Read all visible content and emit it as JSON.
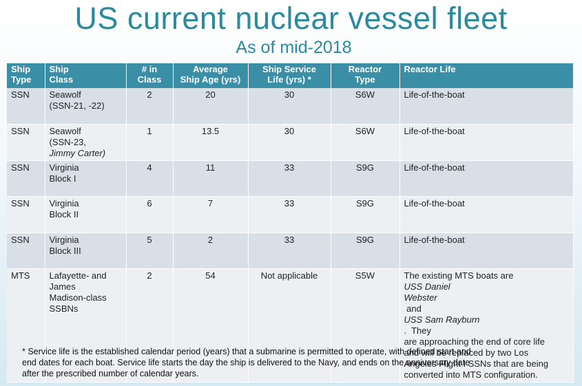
{
  "title": "US current nuclear vessel fleet",
  "subtitle": "As of mid-2018",
  "headers": {
    "type": [
      "Ship",
      "Type"
    ],
    "class": [
      "Ship",
      "Class"
    ],
    "num": [
      "# in",
      "Class"
    ],
    "age": [
      "Average",
      "Ship Age (yrs)"
    ],
    "life": [
      "Ship Service",
      "Life (yrs) *"
    ],
    "reactor": [
      "Reactor",
      "Type"
    ],
    "reactor_life": "Reactor Life"
  },
  "rows": [
    {
      "type": "SSN",
      "class": [
        "Seawolf",
        "(SSN-21, -22)"
      ],
      "num": "2",
      "age": "20",
      "life": "30",
      "reactor": "S6W",
      "reactor_life": "Life-of-the-boat"
    },
    {
      "type": "SSN",
      "class": [
        "Seawolf",
        "(SSN-23,",
        "Jimmy Carter)"
      ],
      "num": "1",
      "age": "13.5",
      "life": "30",
      "reactor": "S6W",
      "reactor_life": "Life-of-the-boat"
    },
    {
      "type": "SSN",
      "class": [
        "Virginia",
        "Block I"
      ],
      "num": "4",
      "age": "11",
      "life": "33",
      "reactor": "S9G",
      "reactor_life": "Life-of-the-boat"
    },
    {
      "type": "SSN",
      "class": [
        "Virginia",
        "Block II"
      ],
      "num": "6",
      "age": "7",
      "life": "33",
      "reactor": "S9G",
      "reactor_life": "Life-of-the-boat"
    },
    {
      "type": "SSN",
      "class": [
        "Virginia",
        "Block III"
      ],
      "num": "5",
      "age": "2",
      "life": "33",
      "reactor": "S9G",
      "reactor_life": "Life-of-the-boat"
    },
    {
      "type": "MTS",
      "class": [
        "Lafayette- and",
        "James",
        "Madison-class",
        "SSBNs"
      ],
      "num": "2",
      "age": "54",
      "life": "Not applicable",
      "reactor": "S5W",
      "reactor_life": [
        "The existing MTS boats are ",
        "USS Daniel",
        "Webster",
        " and ",
        "USS Sam Rayburn",
        ".  They",
        "are approaching the end of core life",
        "and will be replaced by two Los",
        "Angeles Flight I SSNs that are being",
        "converted into MTS configuration."
      ]
    }
  ],
  "footnote": [
    "* Service life is the established calendar period (years) that a submarine is permitted to operate, with defined start and",
    "end dates for each boat. Service life starts the day the ship is delivered to the Navy, and ends on the anniversary date",
    "after the prescribed number of calendar years."
  ]
}
